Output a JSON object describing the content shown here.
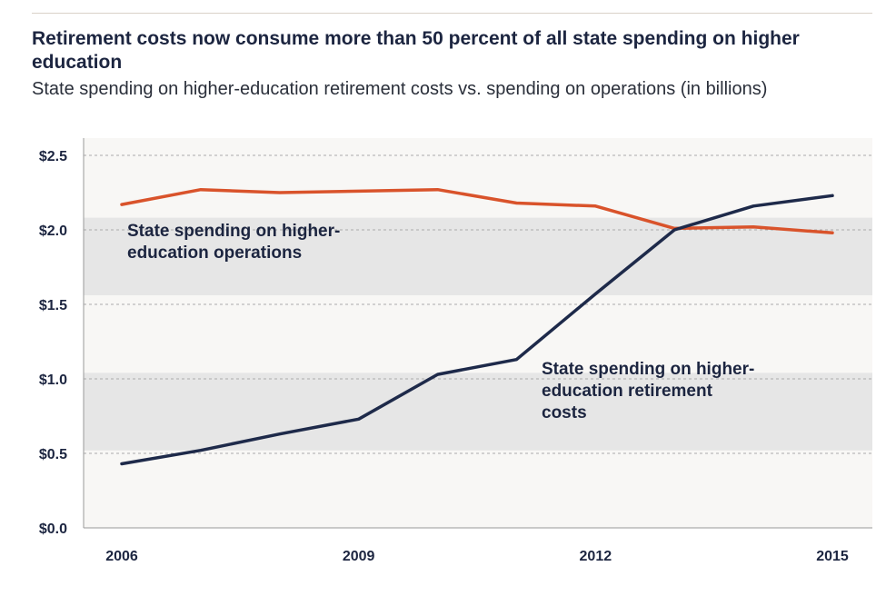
{
  "header": {
    "title": "Retirement costs now consume more than 50 percent of all state spending on higher education",
    "subtitle": "State spending on higher-education retirement costs vs. spending on operations (in billions)"
  },
  "chart_data": {
    "type": "line",
    "x": [
      2006,
      2007,
      2008,
      2009,
      2010,
      2011,
      2012,
      2013,
      2014,
      2015
    ],
    "xticks": [
      2006,
      2009,
      2012,
      2015
    ],
    "xtick_labels": [
      "2006",
      "2009",
      "2012",
      "2015"
    ],
    "yticks": [
      0,
      0.5,
      1.0,
      1.5,
      2.0,
      2.5
    ],
    "ytick_labels": [
      "$0.0",
      "$0.5",
      "$1.0",
      "$1.5",
      "$2.0",
      "$2.5"
    ],
    "ylim": [
      0,
      2.5
    ],
    "series": [
      {
        "name": "State spending on higher-education operations",
        "color": "#d9532b",
        "values": [
          2.17,
          2.27,
          2.25,
          2.26,
          2.27,
          2.18,
          2.16,
          2.01,
          2.02,
          1.98
        ]
      },
      {
        "name": "State spending on higher-education retirement costs",
        "color": "#1e2a4a",
        "values": [
          0.43,
          0.52,
          0.63,
          0.73,
          1.03,
          1.13,
          1.57,
          2.0,
          2.16,
          2.23
        ]
      }
    ],
    "annotations": [
      {
        "lines": [
          "State spending on higher-",
          "education operations"
        ]
      },
      {
        "lines": [
          "State spending on higher-",
          "education retirement",
          "costs"
        ]
      }
    ],
    "colors": {
      "band": "#e6e6e6",
      "background": "#f8f7f5",
      "grid": "#aaaaaa"
    }
  }
}
